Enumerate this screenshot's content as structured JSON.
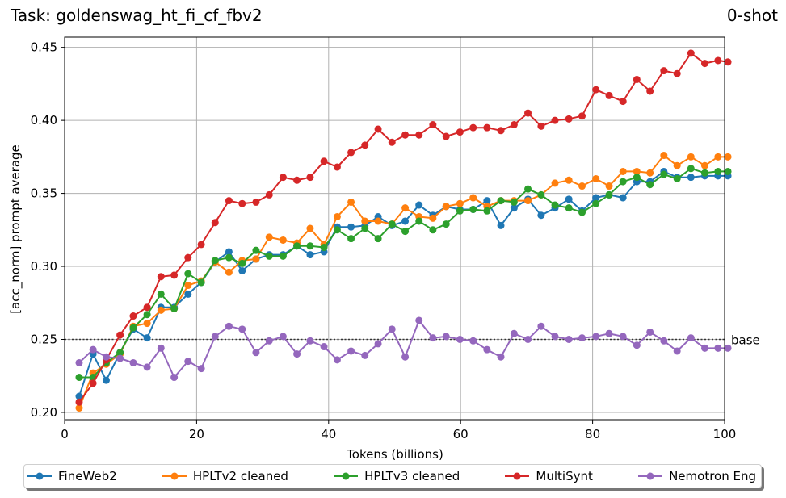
{
  "chart_data": {
    "type": "line",
    "title": "Task: goldenswag_ht_fi_cf_fbv2",
    "subtitle": "0-shot",
    "xlabel": "Tokens (billions)",
    "ylabel": "[acc_norm] prompt average",
    "xlim": [
      0,
      100
    ],
    "ylim": [
      0.195,
      0.457
    ],
    "xticks": [
      0,
      20,
      40,
      60,
      80,
      100
    ],
    "yticks": [
      0.2,
      0.25,
      0.3,
      0.35,
      0.4,
      0.45
    ],
    "xtick_labels": [
      "0",
      "20",
      "40",
      "60",
      "80",
      "100"
    ],
    "ytick_labels": [
      "0.20",
      "0.25",
      "0.30",
      "0.35",
      "0.40",
      "0.45"
    ],
    "grid": true,
    "baseline": {
      "value": 0.25,
      "label": "base"
    },
    "legend_position": "bottom-outside",
    "x": [
      2.2,
      4.3,
      6.3,
      8.4,
      10.4,
      12.5,
      14.6,
      16.6,
      18.7,
      20.7,
      22.8,
      24.9,
      26.9,
      29.0,
      31.0,
      33.1,
      35.2,
      37.2,
      39.3,
      41.3,
      43.4,
      45.5,
      47.5,
      49.6,
      51.6,
      53.7,
      55.8,
      57.8,
      59.9,
      61.9,
      64.0,
      66.1,
      68.1,
      70.2,
      72.2,
      74.3,
      76.4,
      78.4,
      80.5,
      82.5,
      84.6,
      86.7,
      88.7,
      90.8,
      92.8,
      94.9,
      97.0,
      99.0,
      100.5
    ],
    "series": [
      {
        "name": "FineWeb2",
        "color": "#1f77b4",
        "values": [
          0.211,
          0.24,
          0.222,
          0.241,
          0.257,
          0.251,
          0.272,
          0.272,
          0.281,
          0.289,
          0.303,
          0.31,
          0.297,
          0.305,
          0.308,
          0.308,
          0.314,
          0.308,
          0.31,
          0.327,
          0.327,
          0.328,
          0.334,
          0.328,
          0.331,
          0.342,
          0.335,
          0.341,
          0.339,
          0.339,
          0.345,
          0.328,
          0.34,
          0.346,
          0.335,
          0.34,
          0.346,
          0.338,
          0.347,
          0.349,
          0.347,
          0.358,
          0.358,
          0.365,
          0.361,
          0.361,
          0.362,
          0.362,
          0.362
        ]
      },
      {
        "name": "HPLTv2 cleaned",
        "color": "#ff7f0e",
        "values": [
          0.203,
          0.227,
          0.233,
          0.24,
          0.259,
          0.261,
          0.27,
          0.271,
          0.287,
          0.29,
          0.303,
          0.296,
          0.304,
          0.305,
          0.32,
          0.318,
          0.316,
          0.326,
          0.315,
          0.334,
          0.344,
          0.331,
          0.331,
          0.329,
          0.34,
          0.334,
          0.333,
          0.341,
          0.343,
          0.347,
          0.341,
          0.345,
          0.345,
          0.345,
          0.349,
          0.357,
          0.359,
          0.355,
          0.36,
          0.355,
          0.365,
          0.365,
          0.364,
          0.376,
          0.369,
          0.375,
          0.369,
          0.375,
          0.375
        ]
      },
      {
        "name": "HPLTv3 cleaned",
        "color": "#2ca02c",
        "values": [
          0.224,
          0.224,
          0.234,
          0.241,
          0.258,
          0.267,
          0.281,
          0.271,
          0.295,
          0.289,
          0.304,
          0.306,
          0.302,
          0.311,
          0.307,
          0.307,
          0.314,
          0.314,
          0.313,
          0.325,
          0.319,
          0.326,
          0.319,
          0.329,
          0.324,
          0.331,
          0.325,
          0.329,
          0.338,
          0.339,
          0.338,
          0.345,
          0.344,
          0.353,
          0.349,
          0.342,
          0.34,
          0.337,
          0.343,
          0.349,
          0.358,
          0.361,
          0.356,
          0.363,
          0.36,
          0.367,
          0.364,
          0.365,
          0.365
        ]
      },
      {
        "name": "MultiSynt",
        "color": "#d62728",
        "values": [
          0.207,
          0.22,
          0.236,
          0.253,
          0.266,
          0.272,
          0.293,
          0.294,
          0.306,
          0.315,
          0.33,
          0.345,
          0.343,
          0.344,
          0.349,
          0.361,
          0.359,
          0.361,
          0.372,
          0.368,
          0.378,
          0.383,
          0.394,
          0.385,
          0.39,
          0.39,
          0.397,
          0.389,
          0.392,
          0.395,
          0.395,
          0.393,
          0.397,
          0.405,
          0.396,
          0.4,
          0.401,
          0.403,
          0.421,
          0.417,
          0.413,
          0.428,
          0.42,
          0.434,
          0.432,
          0.446,
          0.439,
          0.441,
          0.44
        ]
      },
      {
        "name": "Nemotron Eng",
        "color": "#9467bd",
        "values": [
          0.234,
          0.243,
          0.238,
          0.237,
          0.234,
          0.231,
          0.244,
          0.224,
          0.235,
          0.23,
          0.252,
          0.259,
          0.257,
          0.241,
          0.249,
          0.252,
          0.24,
          0.249,
          0.245,
          0.236,
          0.242,
          0.239,
          0.247,
          0.257,
          0.238,
          0.263,
          0.251,
          0.252,
          0.25,
          0.249,
          0.243,
          0.238,
          0.254,
          0.25,
          0.259,
          0.252,
          0.25,
          0.251,
          0.252,
          0.254,
          0.252,
          0.246,
          0.255,
          0.249,
          0.242,
          0.251,
          0.244,
          0.244,
          0.244
        ]
      }
    ]
  }
}
